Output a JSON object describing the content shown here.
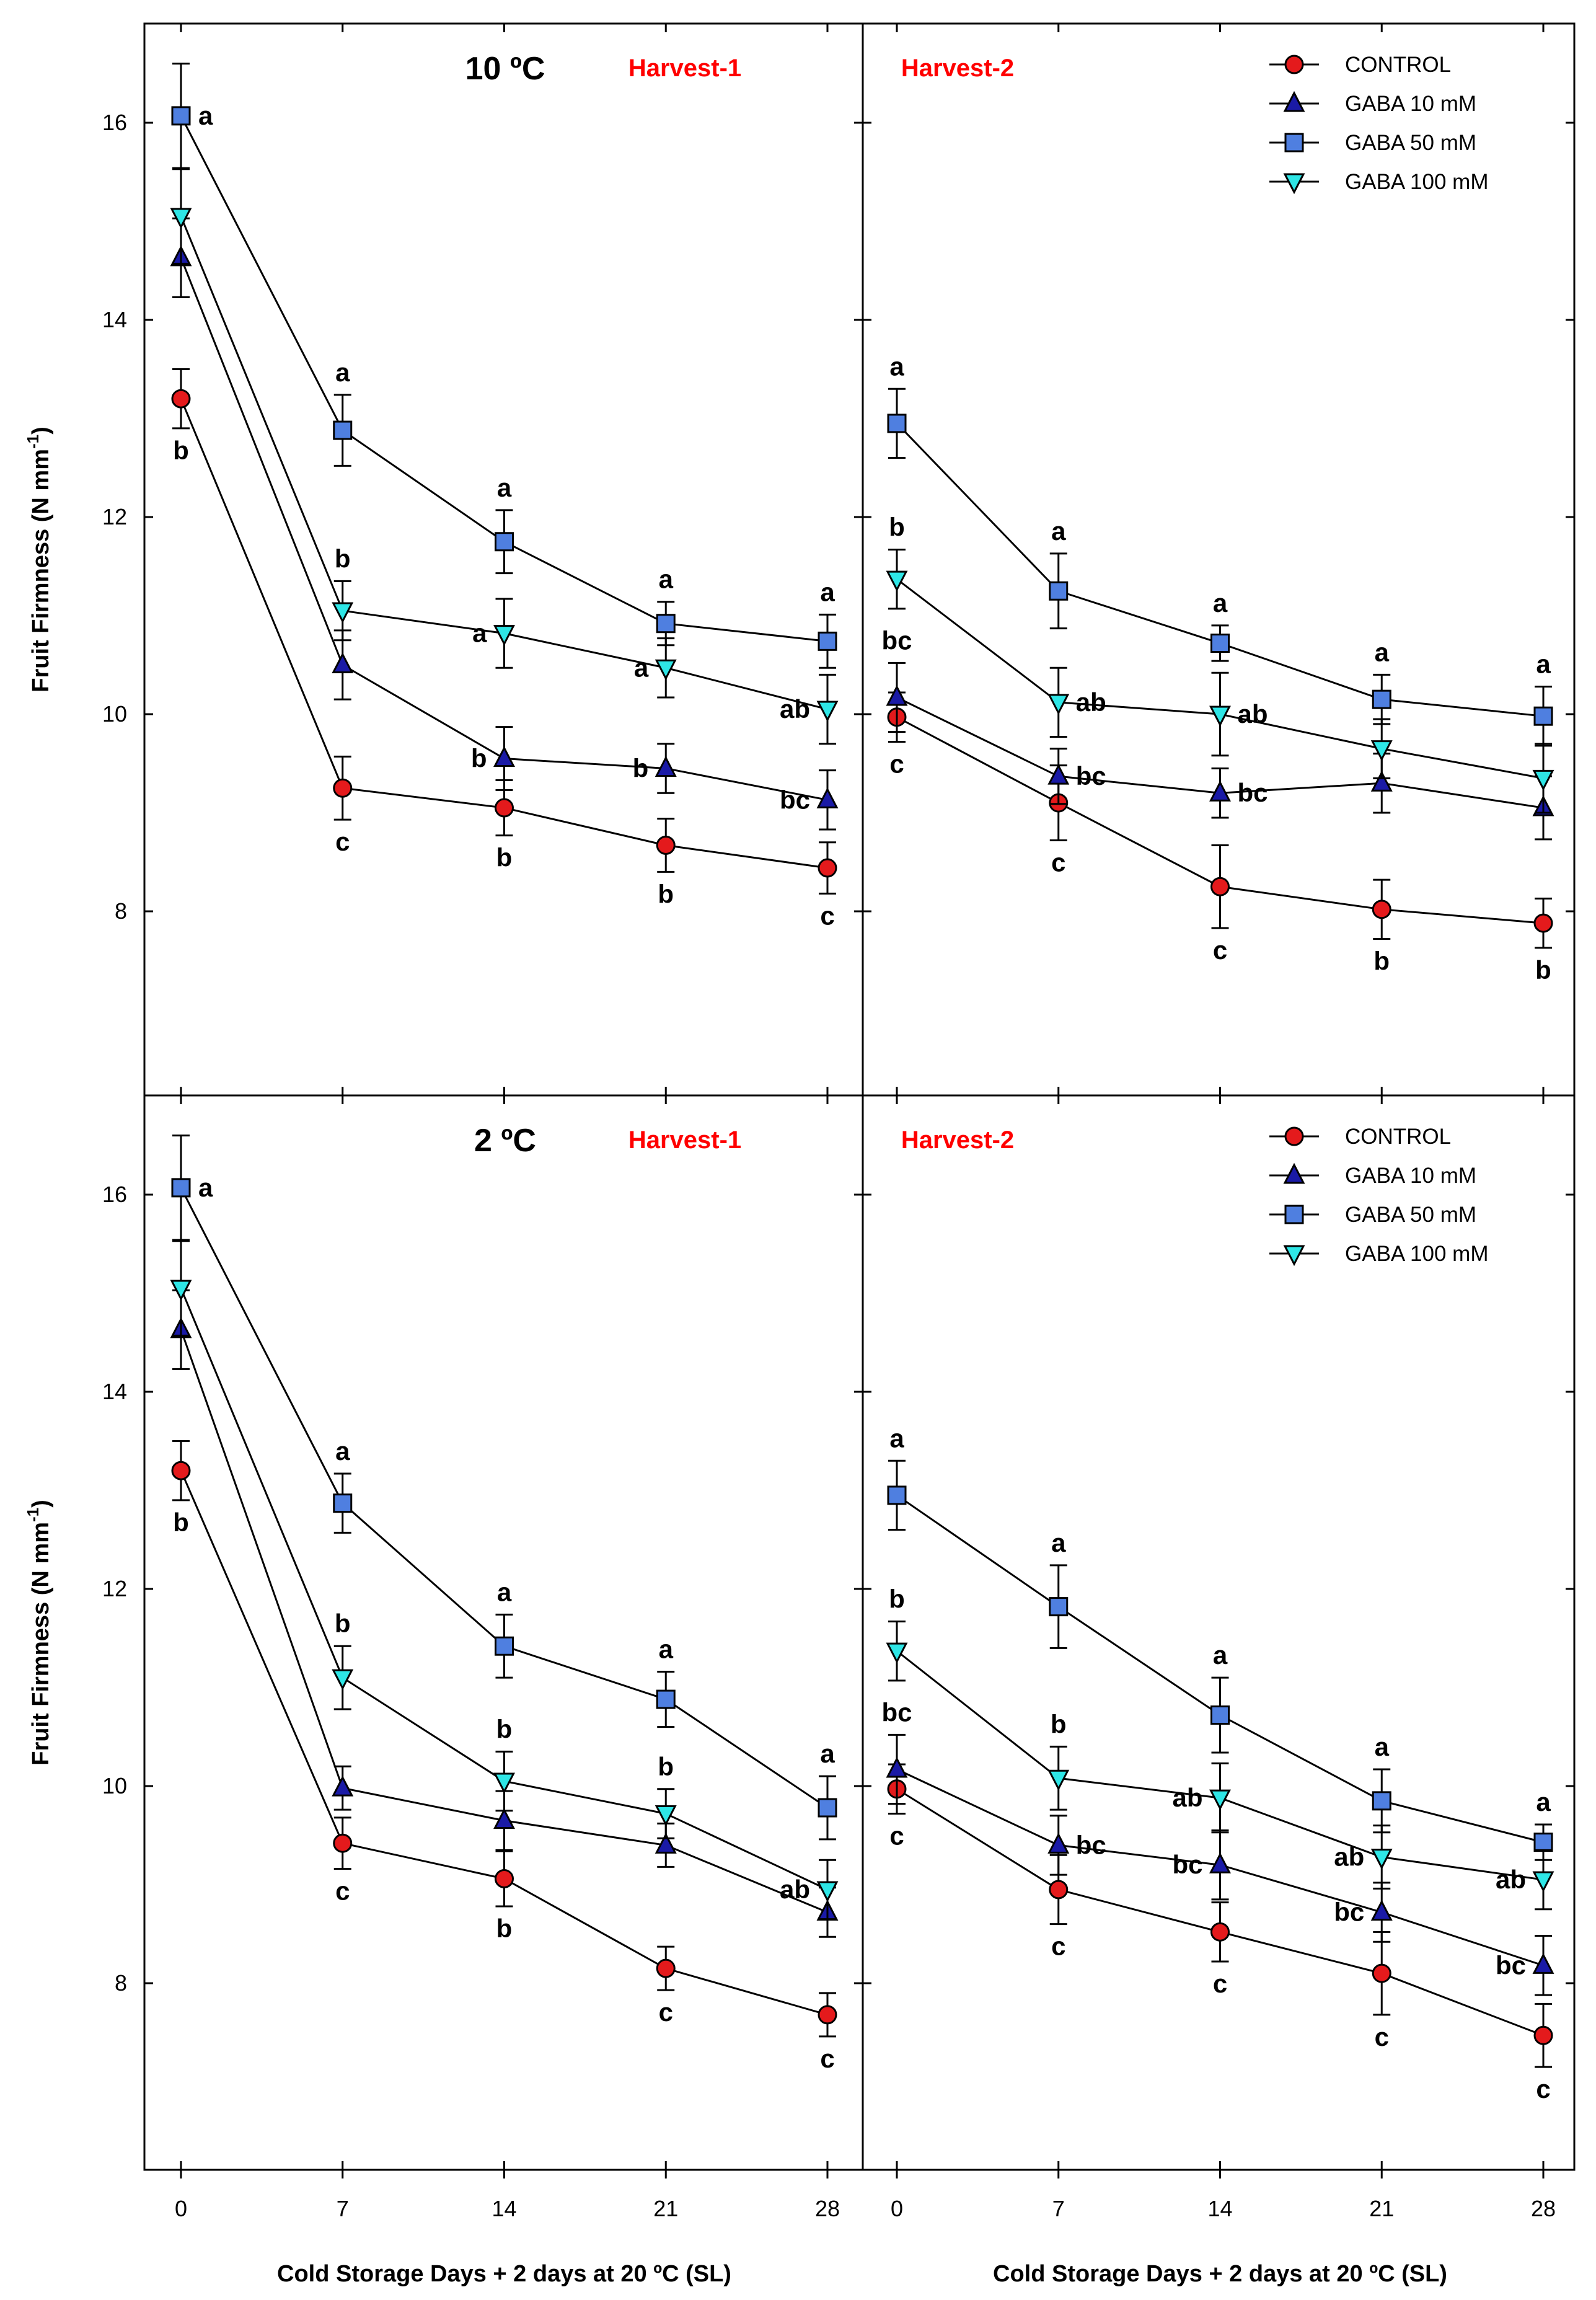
{
  "colors": {
    "control": "#e41a1c",
    "gaba10": "#1a1aa6",
    "gaba50": "#4f7fe0",
    "gaba100": "#2ee6e6",
    "harvest": "#ff0000",
    "frame": "#000000"
  },
  "chart_data": [
    {
      "type": "line",
      "panel": "top-left",
      "title": "10 ºC",
      "subtitle": "Harvest-1",
      "xlabel": "",
      "ylabel": "Fruit Firmness (N mm",
      "ylabel_sup": "-1",
      "ylabel_end": ")",
      "x": [
        0,
        7,
        14,
        21,
        28
      ],
      "ylim": [
        6,
        17
      ],
      "yticks": [
        8,
        10,
        12,
        14,
        16
      ],
      "series": [
        {
          "name": "CONTROL",
          "values": [
            13.2,
            9.25,
            9.05,
            8.67,
            8.44
          ],
          "errors": [
            0.3,
            0.32,
            0.28,
            0.27,
            0.26
          ],
          "letters": [
            "b",
            "c",
            "b",
            "b",
            "c"
          ],
          "letter_pos": [
            "below",
            "below",
            "below",
            "below",
            "below"
          ]
        },
        {
          "name": "GABA 10 mM",
          "values": [
            14.63,
            10.5,
            9.55,
            9.45,
            9.13
          ],
          "errors": [
            0.4,
            0.35,
            0.32,
            0.25,
            0.3
          ],
          "letters": [
            "",
            "",
            "b",
            "b",
            "bc"
          ],
          "letter_pos": [
            "",
            "",
            "left",
            "left",
            "left"
          ]
        },
        {
          "name": "GABA 50 mM",
          "values": [
            16.07,
            12.88,
            11.75,
            10.92,
            10.74
          ],
          "errors": [
            0.53,
            0.36,
            0.32,
            0.22,
            0.27
          ],
          "letters": [
            "a",
            "a",
            "a",
            "a",
            "a"
          ],
          "letter_pos": [
            "right",
            "above",
            "above",
            "above",
            "above"
          ]
        },
        {
          "name": "GABA 100 mM",
          "values": [
            15.05,
            11.05,
            10.82,
            10.47,
            10.05
          ],
          "errors": [
            0.48,
            0.3,
            0.35,
            0.3,
            0.35
          ],
          "letters": [
            "",
            "b",
            "a",
            "a",
            "ab"
          ],
          "letter_pos": [
            "",
            "above",
            "left",
            "left",
            "left"
          ]
        }
      ],
      "legend": []
    },
    {
      "type": "line",
      "panel": "top-right",
      "title": "",
      "subtitle": "Harvest-2",
      "xlabel": "",
      "ylabel": "",
      "x": [
        0,
        7,
        14,
        21,
        28
      ],
      "ylim": [
        6,
        17
      ],
      "yticks": [
        8,
        10,
        12,
        14,
        16
      ],
      "series": [
        {
          "name": "CONTROL",
          "values": [
            9.97,
            9.1,
            8.25,
            8.02,
            7.88
          ],
          "errors": [
            0.25,
            0.38,
            0.42,
            0.3,
            0.25
          ],
          "letters": [
            "c",
            "c",
            "c",
            "b",
            "b"
          ],
          "letter_pos": [
            "below",
            "below",
            "below",
            "below",
            "below"
          ]
        },
        {
          "name": "GABA 10 mM",
          "values": [
            10.17,
            9.37,
            9.2,
            9.3,
            9.05
          ],
          "errors": [
            0.35,
            0.28,
            0.25,
            0.3,
            0.32
          ],
          "letters": [
            "bc",
            "bc",
            "bc",
            "",
            ""
          ],
          "letter_pos": [
            "above",
            "right",
            "right",
            "",
            ""
          ]
        },
        {
          "name": "GABA 50 mM",
          "values": [
            12.95,
            11.25,
            10.72,
            10.15,
            9.98
          ],
          "errors": [
            0.35,
            0.38,
            0.18,
            0.25,
            0.3
          ],
          "letters": [
            "a",
            "a",
            "a",
            "a",
            "a"
          ],
          "letter_pos": [
            "above",
            "above",
            "above",
            "above",
            "above"
          ]
        },
        {
          "name": "GABA 100 mM",
          "values": [
            11.37,
            10.12,
            10.0,
            9.65,
            9.35
          ],
          "errors": [
            0.3,
            0.35,
            0.42,
            0.3,
            0.35
          ],
          "letters": [
            "b",
            "ab",
            "ab",
            "",
            ""
          ],
          "letter_pos": [
            "above",
            "right",
            "right",
            "",
            ""
          ]
        }
      ],
      "legend": [
        "CONTROL",
        "GABA 10 mM",
        "GABA 50 mM",
        "GABA 100 mM"
      ]
    },
    {
      "type": "line",
      "panel": "bottom-left",
      "title": "2 ºC",
      "subtitle": "Harvest-1",
      "xlabel": "Cold Storage Days + 2 days at 20 ºC (SL)",
      "ylabel": "Fruit Firmness (N mm",
      "ylabel_sup": "-1",
      "ylabel_end": ")",
      "x": [
        0,
        7,
        14,
        21,
        28
      ],
      "ylim": [
        6,
        17
      ],
      "yticks": [
        8,
        10,
        12,
        14,
        16
      ],
      "series": [
        {
          "name": "CONTROL",
          "values": [
            13.2,
            9.42,
            9.06,
            8.15,
            7.68
          ],
          "errors": [
            0.3,
            0.26,
            0.28,
            0.22,
            0.22
          ],
          "letters": [
            "b",
            "c",
            "b",
            "c",
            "c"
          ],
          "letter_pos": [
            "below",
            "below",
            "below",
            "below",
            "below"
          ]
        },
        {
          "name": "GABA 10 mM",
          "values": [
            14.63,
            9.98,
            9.65,
            9.4,
            8.72
          ],
          "errors": [
            0.4,
            0.22,
            0.3,
            0.22,
            0.25
          ],
          "letters": [
            "",
            "",
            "",
            "",
            ""
          ],
          "letter_pos": [
            "",
            "",
            "",
            "",
            ""
          ]
        },
        {
          "name": "GABA 50 mM",
          "values": [
            16.07,
            12.87,
            11.42,
            10.88,
            9.78
          ],
          "errors": [
            0.53,
            0.3,
            0.32,
            0.28,
            0.32
          ],
          "letters": [
            "a",
            "a",
            "a",
            "a",
            "a"
          ],
          "letter_pos": [
            "right",
            "above",
            "above",
            "above",
            "above"
          ]
        },
        {
          "name": "GABA 100 mM",
          "values": [
            15.05,
            11.1,
            10.05,
            9.72,
            8.95
          ],
          "errors": [
            0.48,
            0.32,
            0.3,
            0.25,
            0.3
          ],
          "letters": [
            "",
            "b",
            "b",
            "b",
            "ab"
          ],
          "letter_pos": [
            "",
            "above",
            "above",
            "above",
            "left"
          ]
        }
      ],
      "legend": []
    },
    {
      "type": "line",
      "panel": "bottom-right",
      "title": "",
      "subtitle": "Harvest-2",
      "xlabel": "Cold Storage Days + 2 days at 20 ºC (SL)",
      "ylabel": "",
      "x": [
        0,
        7,
        14,
        21,
        28
      ],
      "ylim": [
        6,
        17
      ],
      "yticks": [
        8,
        10,
        12,
        14,
        16
      ],
      "series": [
        {
          "name": "CONTROL",
          "values": [
            9.97,
            8.95,
            8.52,
            8.1,
            7.47
          ],
          "errors": [
            0.25,
            0.35,
            0.3,
            0.42,
            0.32
          ],
          "letters": [
            "c",
            "c",
            "c",
            "c",
            "c"
          ],
          "letter_pos": [
            "below",
            "below",
            "below",
            "below",
            "below"
          ]
        },
        {
          "name": "GABA 10 mM",
          "values": [
            10.17,
            9.4,
            9.2,
            8.72,
            8.18
          ],
          "errors": [
            0.35,
            0.3,
            0.35,
            0.3,
            0.3
          ],
          "letters": [
            "bc",
            "bc",
            "bc",
            "bc",
            "bc"
          ],
          "letter_pos": [
            "above",
            "right",
            "left",
            "left",
            "left"
          ]
        },
        {
          "name": "GABA 50 mM",
          "values": [
            12.95,
            11.82,
            10.72,
            9.85,
            9.43
          ],
          "errors": [
            0.35,
            0.42,
            0.38,
            0.32,
            0.18
          ],
          "letters": [
            "a",
            "a",
            "a",
            "a",
            "a"
          ],
          "letter_pos": [
            "above",
            "above",
            "above",
            "above",
            "above"
          ]
        },
        {
          "name": "GABA 100 mM",
          "values": [
            11.37,
            10.08,
            9.88,
            9.28,
            9.05
          ],
          "errors": [
            0.3,
            0.32,
            0.35,
            0.32,
            0.3
          ],
          "letters": [
            "b",
            "b",
            "ab",
            "ab",
            "ab"
          ],
          "letter_pos": [
            "above",
            "above",
            "left",
            "left",
            "left"
          ]
        }
      ],
      "legend": [
        "CONTROL",
        "GABA 10 mM",
        "GABA 50 mM",
        "GABA 100 mM"
      ]
    }
  ]
}
